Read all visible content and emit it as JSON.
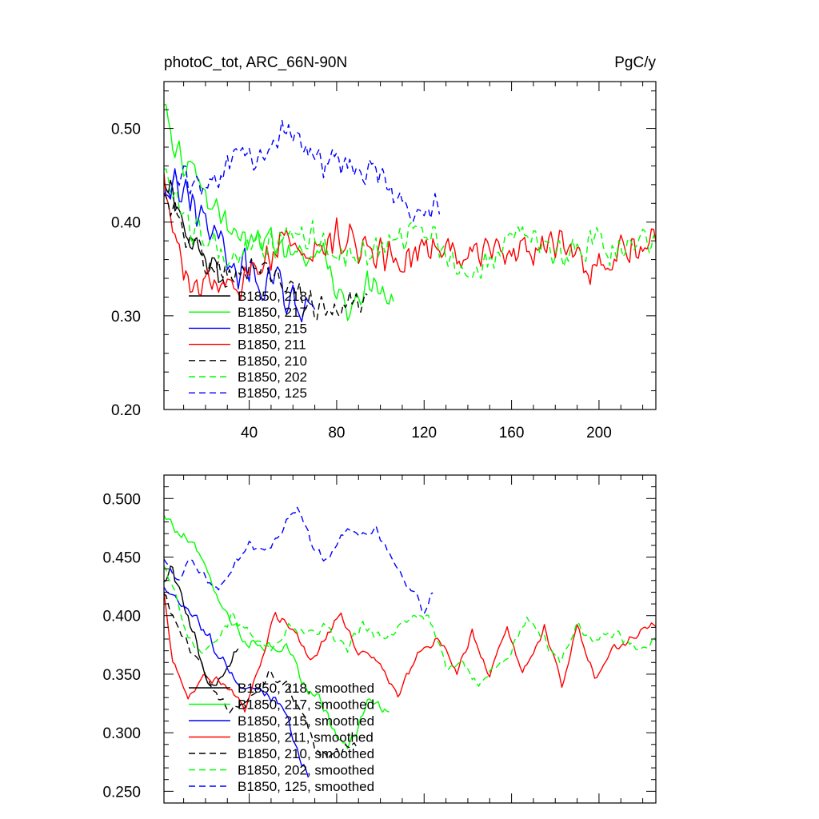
{
  "chart_data": [
    {
      "type": "line",
      "title": "photoC_tot, ARC_66N-90N",
      "units": "PgC/y",
      "xlim": [
        1,
        226
      ],
      "ylim": [
        0.2,
        0.55
      ],
      "x_ticks": [
        40,
        80,
        120,
        160,
        200
      ],
      "y_ticks": [
        0.2,
        0.3,
        0.4,
        0.5
      ],
      "y_tick_labels": [
        "0.20",
        "0.30",
        "0.40",
        "0.50"
      ],
      "legend_position": "lower-left",
      "series": [
        {
          "name": "B1850, 218",
          "color": "#000000",
          "dash": "solid",
          "x_start": 1,
          "x_end": 30,
          "seed": 218,
          "knots": [
            [
              1,
              0.45
            ],
            [
              8,
              0.42
            ],
            [
              15,
              0.38
            ],
            [
              22,
              0.35
            ],
            [
              30,
              0.33
            ]
          ],
          "noise": 0.022
        },
        {
          "name": "B1850, 217",
          "color": "#00ff00",
          "dash": "solid",
          "x_start": 1,
          "x_end": 106,
          "seed": 217,
          "knots": [
            [
              1,
              0.52
            ],
            [
              5,
              0.48
            ],
            [
              15,
              0.45
            ],
            [
              30,
              0.39
            ],
            [
              45,
              0.38
            ],
            [
              60,
              0.37
            ],
            [
              75,
              0.36
            ],
            [
              85,
              0.3
            ],
            [
              95,
              0.33
            ],
            [
              106,
              0.32
            ]
          ],
          "noise": 0.022
        },
        {
          "name": "B1850, 215",
          "color": "#0000ff",
          "dash": "solid",
          "x_start": 1,
          "x_end": 70,
          "seed": 215,
          "knots": [
            [
              1,
              0.43
            ],
            [
              10,
              0.44
            ],
            [
              20,
              0.4
            ],
            [
              30,
              0.36
            ],
            [
              45,
              0.34
            ],
            [
              55,
              0.33
            ],
            [
              63,
              0.3
            ],
            [
              70,
              0.32
            ]
          ],
          "noise": 0.025
        },
        {
          "name": "B1850, 211",
          "color": "#ff0000",
          "dash": "solid",
          "x_start": 1,
          "x_end": 226,
          "seed": 211,
          "knots": [
            [
              1,
              0.44
            ],
            [
              8,
              0.36
            ],
            [
              15,
              0.33
            ],
            [
              25,
              0.34
            ],
            [
              40,
              0.34
            ],
            [
              55,
              0.38
            ],
            [
              70,
              0.37
            ],
            [
              85,
              0.39
            ],
            [
              100,
              0.36
            ],
            [
              120,
              0.37
            ],
            [
              140,
              0.37
            ],
            [
              160,
              0.36
            ],
            [
              180,
              0.37
            ],
            [
              200,
              0.35
            ],
            [
              215,
              0.38
            ],
            [
              226,
              0.37
            ]
          ],
          "noise": 0.025
        },
        {
          "name": "B1850, 210",
          "color": "#000000",
          "dash": "dashed",
          "x_start": 1,
          "x_end": 94,
          "seed": 210,
          "knots": [
            [
              1,
              0.43
            ],
            [
              10,
              0.39
            ],
            [
              20,
              0.36
            ],
            [
              30,
              0.34
            ],
            [
              45,
              0.35
            ],
            [
              60,
              0.33
            ],
            [
              75,
              0.3
            ],
            [
              85,
              0.31
            ],
            [
              94,
              0.33
            ]
          ],
          "noise": 0.022
        },
        {
          "name": "B1850, 202",
          "color": "#00ff00",
          "dash": "dashed",
          "x_start": 1,
          "x_end": 226,
          "seed": 202,
          "knots": [
            [
              1,
              0.46
            ],
            [
              10,
              0.4
            ],
            [
              20,
              0.38
            ],
            [
              35,
              0.37
            ],
            [
              50,
              0.38
            ],
            [
              65,
              0.39
            ],
            [
              80,
              0.37
            ],
            [
              100,
              0.37
            ],
            [
              115,
              0.39
            ],
            [
              125,
              0.38
            ],
            [
              135,
              0.35
            ],
            [
              150,
              0.36
            ],
            [
              165,
              0.39
            ],
            [
              180,
              0.36
            ],
            [
              195,
              0.38
            ],
            [
              210,
              0.37
            ],
            [
              226,
              0.38
            ]
          ],
          "noise": 0.022
        },
        {
          "name": "B1850, 125",
          "color": "#0000ff",
          "dash": "dashed",
          "x_start": 1,
          "x_end": 127,
          "seed": 125,
          "knots": [
            [
              1,
              0.43
            ],
            [
              10,
              0.44
            ],
            [
              20,
              0.43
            ],
            [
              30,
              0.46
            ],
            [
              40,
              0.46
            ],
            [
              50,
              0.47
            ],
            [
              58,
              0.5
            ],
            [
              70,
              0.47
            ],
            [
              85,
              0.46
            ],
            [
              100,
              0.45
            ],
            [
              110,
              0.42
            ],
            [
              120,
              0.4
            ],
            [
              127,
              0.42
            ]
          ],
          "noise": 0.022
        }
      ]
    },
    {
      "type": "line",
      "title": "",
      "xlim": [
        1,
        226
      ],
      "ylim": [
        0.24,
        0.52
      ],
      "x_ticks": [
        40,
        80,
        120,
        160,
        200
      ],
      "y_ticks": [
        0.25,
        0.3,
        0.35,
        0.4,
        0.45,
        0.5
      ],
      "y_tick_labels": [
        "0.250",
        "0.300",
        "0.350",
        "0.400",
        "0.450",
        "0.500"
      ],
      "legend_position": "lower-left",
      "series": [
        {
          "name": "B1850, 218, smoothed",
          "color": "#000000",
          "dash": "solid",
          "x_start": 1,
          "x_end": 35,
          "seed": 318,
          "knots": [
            [
              1,
              0.43
            ],
            [
              5,
              0.44
            ],
            [
              10,
              0.41
            ],
            [
              15,
              0.38
            ],
            [
              22,
              0.34
            ],
            [
              28,
              0.35
            ],
            [
              35,
              0.37
            ]
          ],
          "noise": 0.007
        },
        {
          "name": "B1850, 217, smoothed",
          "color": "#00ff00",
          "dash": "solid",
          "x_start": 1,
          "x_end": 104,
          "seed": 317,
          "knots": [
            [
              1,
              0.485
            ],
            [
              8,
              0.47
            ],
            [
              15,
              0.465
            ],
            [
              22,
              0.43
            ],
            [
              30,
              0.4
            ],
            [
              40,
              0.375
            ],
            [
              50,
              0.375
            ],
            [
              58,
              0.37
            ],
            [
              65,
              0.34
            ],
            [
              72,
              0.33
            ],
            [
              80,
              0.295
            ],
            [
              85,
              0.285
            ],
            [
              95,
              0.33
            ],
            [
              104,
              0.315
            ]
          ],
          "noise": 0.006
        },
        {
          "name": "B1850, 215, smoothed",
          "color": "#0000ff",
          "dash": "solid",
          "x_start": 1,
          "x_end": 67,
          "seed": 315,
          "knots": [
            [
              1,
              0.425
            ],
            [
              8,
              0.41
            ],
            [
              15,
              0.4
            ],
            [
              25,
              0.37
            ],
            [
              35,
              0.34
            ],
            [
              45,
              0.335
            ],
            [
              52,
              0.33
            ],
            [
              58,
              0.31
            ],
            [
              63,
              0.28
            ],
            [
              67,
              0.265
            ]
          ],
          "noise": 0.006
        },
        {
          "name": "B1850, 211, smoothed",
          "color": "#ff0000",
          "dash": "solid",
          "x_start": 1,
          "x_end": 226,
          "seed": 311,
          "knots": [
            [
              1,
              0.42
            ],
            [
              5,
              0.36
            ],
            [
              12,
              0.33
            ],
            [
              20,
              0.35
            ],
            [
              30,
              0.34
            ],
            [
              38,
              0.32
            ],
            [
              45,
              0.36
            ],
            [
              52,
              0.4
            ],
            [
              60,
              0.39
            ],
            [
              68,
              0.36
            ],
            [
              75,
              0.38
            ],
            [
              82,
              0.4
            ],
            [
              90,
              0.37
            ],
            [
              100,
              0.36
            ],
            [
              108,
              0.33
            ],
            [
              118,
              0.37
            ],
            [
              127,
              0.38
            ],
            [
              135,
              0.35
            ],
            [
              142,
              0.385
            ],
            [
              150,
              0.35
            ],
            [
              158,
              0.39
            ],
            [
              165,
              0.35
            ],
            [
              175,
              0.39
            ],
            [
              183,
              0.34
            ],
            [
              190,
              0.39
            ],
            [
              198,
              0.345
            ],
            [
              205,
              0.37
            ],
            [
              215,
              0.38
            ],
            [
              222,
              0.39
            ],
            [
              226,
              0.39
            ]
          ],
          "noise": 0.005
        },
        {
          "name": "B1850, 210, smoothed",
          "color": "#000000",
          "dash": "dashed",
          "x_start": 1,
          "x_end": 90,
          "seed": 310,
          "knots": [
            [
              1,
              0.42
            ],
            [
              5,
              0.4
            ],
            [
              10,
              0.38
            ],
            [
              18,
              0.36
            ],
            [
              25,
              0.33
            ],
            [
              32,
              0.32
            ],
            [
              40,
              0.33
            ],
            [
              50,
              0.35
            ],
            [
              58,
              0.34
            ],
            [
              65,
              0.31
            ],
            [
              72,
              0.28
            ],
            [
              80,
              0.285
            ],
            [
              90,
              0.29
            ]
          ],
          "noise": 0.006
        },
        {
          "name": "B1850, 202, smoothed",
          "color": "#00ff00",
          "dash": "dashed",
          "x_start": 1,
          "x_end": 226,
          "seed": 302,
          "knots": [
            [
              1,
              0.44
            ],
            [
              6,
              0.42
            ],
            [
              12,
              0.38
            ],
            [
              18,
              0.37
            ],
            [
              25,
              0.38
            ],
            [
              32,
              0.4
            ],
            [
              40,
              0.385
            ],
            [
              50,
              0.37
            ],
            [
              58,
              0.39
            ],
            [
              66,
              0.385
            ],
            [
              75,
              0.39
            ],
            [
              85,
              0.37
            ],
            [
              92,
              0.395
            ],
            [
              100,
              0.38
            ],
            [
              108,
              0.39
            ],
            [
              115,
              0.4
            ],
            [
              122,
              0.4
            ],
            [
              130,
              0.355
            ],
            [
              138,
              0.36
            ],
            [
              145,
              0.34
            ],
            [
              152,
              0.355
            ],
            [
              160,
              0.37
            ],
            [
              167,
              0.4
            ],
            [
              175,
              0.38
            ],
            [
              182,
              0.36
            ],
            [
              190,
              0.39
            ],
            [
              198,
              0.38
            ],
            [
              208,
              0.385
            ],
            [
              218,
              0.37
            ],
            [
              226,
              0.38
            ]
          ],
          "noise": 0.005
        },
        {
          "name": "B1850, 125, smoothed",
          "color": "#0000ff",
          "dash": "dashed",
          "x_start": 1,
          "x_end": 124,
          "seed": 325,
          "knots": [
            [
              1,
              0.45
            ],
            [
              8,
              0.43
            ],
            [
              14,
              0.45
            ],
            [
              20,
              0.43
            ],
            [
              26,
              0.42
            ],
            [
              32,
              0.44
            ],
            [
              40,
              0.46
            ],
            [
              48,
              0.455
            ],
            [
              56,
              0.475
            ],
            [
              62,
              0.495
            ],
            [
              68,
              0.465
            ],
            [
              75,
              0.445
            ],
            [
              82,
              0.47
            ],
            [
              90,
              0.47
            ],
            [
              98,
              0.475
            ],
            [
              105,
              0.45
            ],
            [
              110,
              0.43
            ],
            [
              116,
              0.42
            ],
            [
              120,
              0.4
            ],
            [
              124,
              0.42
            ]
          ],
          "noise": 0.005
        }
      ]
    }
  ]
}
